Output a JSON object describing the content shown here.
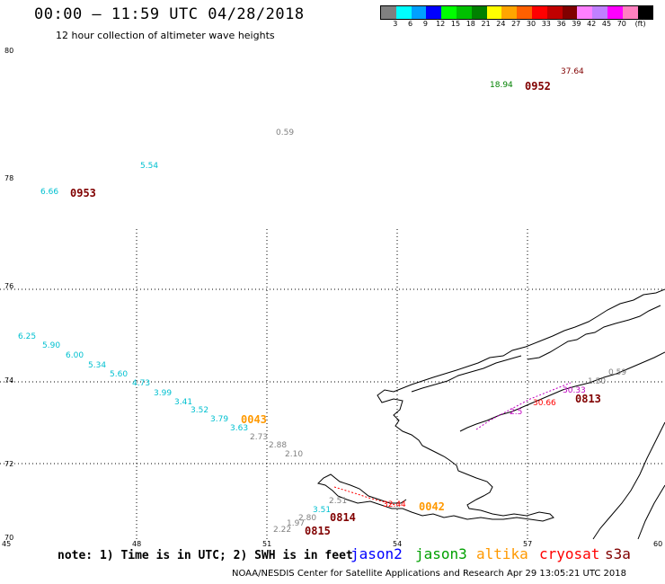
{
  "header": {
    "title": "00:00 – 11:59 UTC 04/28/2018",
    "subtitle": "12 hour collection of altimeter wave heights"
  },
  "colorbar": {
    "colors": [
      "#808080",
      "#00ffff",
      "#00a0ff",
      "#0000ff",
      "#00ff00",
      "#00c000",
      "#008000",
      "#ffff00",
      "#ffa500",
      "#ff6000",
      "#ff0000",
      "#c00000",
      "#800000",
      "#ff80ff",
      "#c080ff",
      "#ff00ff",
      "#ff80c0",
      "#000000"
    ],
    "labels": [
      "3",
      "6",
      "9",
      "12",
      "15",
      "18",
      "21",
      "24",
      "27",
      "30",
      "33",
      "36",
      "39",
      "42",
      "45",
      "70",
      "(ft)"
    ]
  },
  "lat_labels": [
    "80",
    "78",
    "76",
    "74",
    "72",
    "70"
  ],
  "lon_labels": [
    "45",
    "48",
    "51",
    "54",
    "57",
    "60"
  ],
  "observations": [
    {
      "text": "37.64",
      "color": "#800000"
    },
    {
      "text": "18.94",
      "color": "#008000"
    },
    {
      "text": "0.59",
      "color": "#808080"
    },
    {
      "text": "5.54",
      "color": "#00c0d0"
    },
    {
      "text": "6.66",
      "color": "#00c0d0"
    },
    {
      "text": "6.25",
      "color": "#00c0d0"
    },
    {
      "text": "5.90",
      "color": "#00c0d0"
    },
    {
      "text": "6.00",
      "color": "#00c0d0"
    },
    {
      "text": "5.34",
      "color": "#00c0d0"
    },
    {
      "text": "5.60",
      "color": "#00c0d0"
    },
    {
      "text": "4.73",
      "color": "#00c0d0"
    },
    {
      "text": "3.99",
      "color": "#00c0d0"
    },
    {
      "text": "3.41",
      "color": "#00c0d0"
    },
    {
      "text": "3.52",
      "color": "#00c0d0"
    },
    {
      "text": "3.79",
      "color": "#00c0d0"
    },
    {
      "text": "3.63",
      "color": "#00c0d0"
    },
    {
      "text": "2.73",
      "color": "#808080"
    },
    {
      "text": "2.88",
      "color": "#808080"
    },
    {
      "text": "2.10",
      "color": "#808080"
    },
    {
      "text": "2.51",
      "color": "#808080"
    },
    {
      "text": "3.51",
      "color": "#00c0d0"
    },
    {
      "text": "2.80",
      "color": "#808080"
    },
    {
      "text": "1.97",
      "color": "#808080"
    },
    {
      "text": "2.22",
      "color": "#808080"
    },
    {
      "text": "32.44",
      "color": "#ff0000"
    },
    {
      "text": "0.59",
      "color": "#808080"
    },
    {
      "text": "1.50",
      "color": "#808080"
    },
    {
      "text": "30.33",
      "color": "#c000c0"
    },
    {
      "text": "30.66",
      "color": "#ff0000"
    },
    {
      "text": "2.5",
      "color": "#c000c0"
    }
  ],
  "passes": [
    {
      "text": "0952",
      "color": "#800000"
    },
    {
      "text": "0953",
      "color": "#800000"
    },
    {
      "text": "0043",
      "color": "#ff9900"
    },
    {
      "text": "0042",
      "color": "#ff9900"
    },
    {
      "text": "0813",
      "color": "#800000"
    },
    {
      "text": "0814",
      "color": "#800000"
    },
    {
      "text": "0815",
      "color": "#800000"
    }
  ],
  "note": "note: 1) Time is in UTC; 2) SWH is in feet",
  "legend": [
    {
      "label": "jason2",
      "color": "#0000ff"
    },
    {
      "label": "jason3",
      "color": "#00a000"
    },
    {
      "label": "altika",
      "color": "#ff9900"
    },
    {
      "label": "cryosat",
      "color": "#ff0000"
    },
    {
      "label": "s3a",
      "color": "#800000"
    }
  ],
  "footer": "NOAA/NESDIS Center for Satellite Applications and Research    Apr 29 13:05:21 UTC 2018"
}
